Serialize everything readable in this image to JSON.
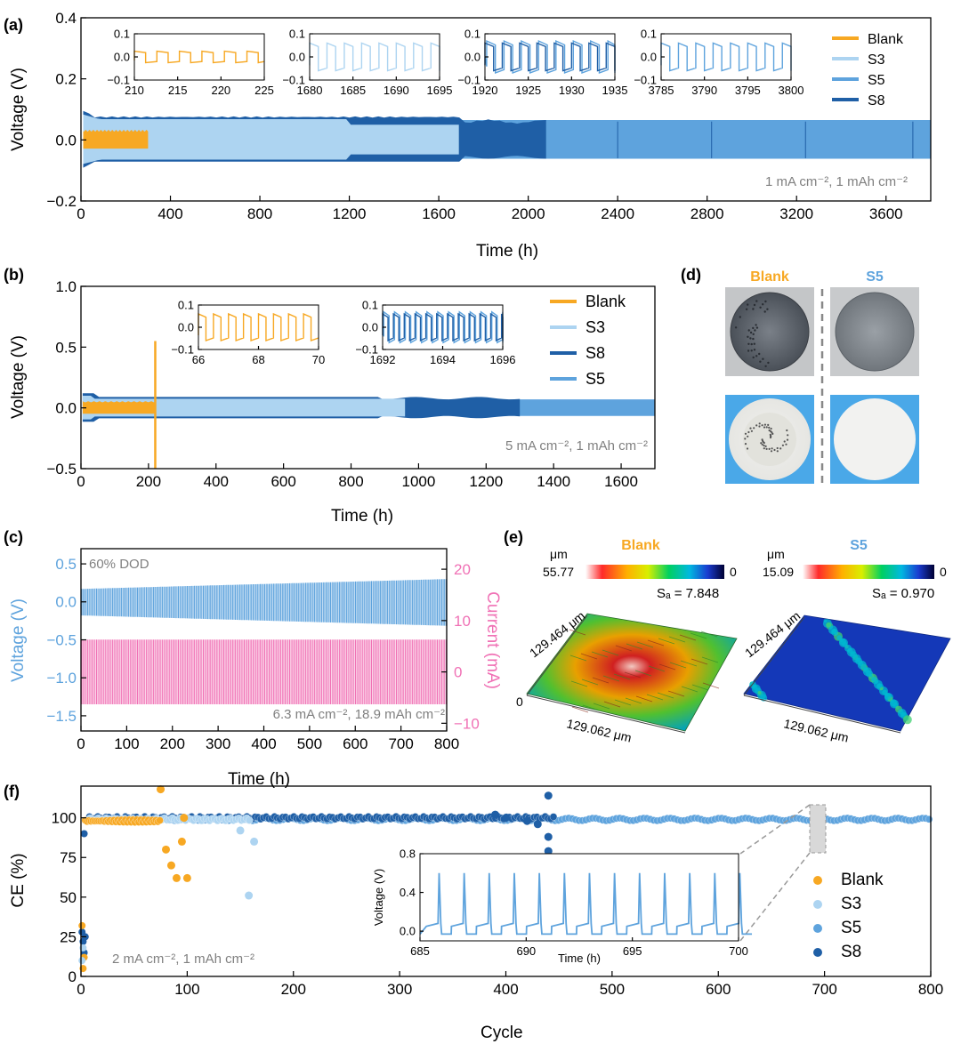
{
  "colors": {
    "blank": "#F7A823",
    "s3": "#ADD4F1",
    "s5": "#5EA3DD",
    "s8": "#1F5FA6",
    "current": "#F071B5",
    "annotation": "#808080"
  },
  "chart_data": [
    {
      "panel": "(a)",
      "type": "line",
      "xlabel": "Time (h)",
      "ylabel": "Voltage (V)",
      "xlim": [
        0,
        3800
      ],
      "ylim": [
        -0.2,
        0.4
      ],
      "xticks": [
        "0",
        "400",
        "800",
        "1200",
        "1600",
        "2000",
        "2400",
        "2800",
        "3200",
        "3600"
      ],
      "yticks": [
        "−0.2",
        "0.0",
        "0.2",
        "0.4"
      ],
      "annotation": "1 mA cm⁻², 1 mAh cm⁻²",
      "legend": [
        "Blank",
        "S3",
        "S5",
        "S8"
      ],
      "series": [
        {
          "name": "Blank",
          "t_end": 300,
          "amplitude": 0.03
        },
        {
          "name": "S3",
          "t_end": 1690,
          "amplitude": 0.07
        },
        {
          "name": "S8",
          "t_end": 2080,
          "amplitude": 0.06
        },
        {
          "name": "S5",
          "t_end": 3800,
          "amplitude": 0.065
        }
      ],
      "insets": [
        {
          "series": "Blank",
          "xlim": [
            210,
            225
          ],
          "xticks": [
            "210",
            "215",
            "220",
            "225"
          ],
          "yticks": [
            "0.1",
            "0.0",
            "−0.1"
          ]
        },
        {
          "series": "S3",
          "xlim": [
            1680,
            1695
          ],
          "xticks": [
            "1680",
            "1685",
            "1690",
            "1695"
          ],
          "yticks": [
            "0.1",
            "0.0",
            "−0.1"
          ]
        },
        {
          "series": "S8+S5",
          "xlim": [
            1920,
            1935
          ],
          "xticks": [
            "1920",
            "1925",
            "1930",
            "1935"
          ],
          "yticks": [
            "0.1",
            "0.0",
            "−0.1"
          ]
        },
        {
          "series": "S5",
          "xlim": [
            3785,
            3800
          ],
          "xticks": [
            "3785",
            "3790",
            "3795",
            "3800"
          ],
          "yticks": [
            "0.1",
            "0.0",
            "−0.1"
          ]
        }
      ]
    },
    {
      "panel": "(b)",
      "type": "line",
      "xlabel": "Time (h)",
      "ylabel": "Voltage (V)",
      "xlim": [
        0,
        1700
      ],
      "ylim": [
        -0.5,
        1.0
      ],
      "xticks": [
        "0",
        "200",
        "400",
        "600",
        "800",
        "1000",
        "1200",
        "1400",
        "1600"
      ],
      "yticks": [
        "−0.5",
        "0.0",
        "0.5",
        "1.0"
      ],
      "annotation": "5 mA cm⁻², 1 mAh cm⁻²",
      "legend": [
        "Blank",
        "S3",
        "S8",
        "S5"
      ],
      "series": [
        {
          "name": "Blank",
          "t_end": 220,
          "amplitude": 0.05,
          "spike": 0.55
        },
        {
          "name": "S3",
          "t_end": 960,
          "amplitude": 0.07
        },
        {
          "name": "S8",
          "t_end": 1300,
          "amplitude": 0.07
        },
        {
          "name": "S5",
          "t_end": 1700,
          "amplitude": 0.07
        }
      ],
      "insets": [
        {
          "series": "Blank",
          "xlim": [
            66,
            70
          ],
          "xticks": [
            "66",
            "68",
            "70"
          ],
          "yticks": [
            "0.1",
            "0.0",
            "−0.1"
          ]
        },
        {
          "series": "S5+S8",
          "xlim": [
            1692,
            1696
          ],
          "xticks": [
            "1692",
            "1694",
            "1696"
          ],
          "yticks": [
            "0.1",
            "0.0",
            "−0.1"
          ]
        }
      ]
    },
    {
      "panel": "(c)",
      "type": "line",
      "xlabel": "Time (h)",
      "ylabel": "Voltage (V)",
      "ylabel_right": "Current (mA)",
      "xlim": [
        0,
        800
      ],
      "ylim": [
        -1.7,
        0.7
      ],
      "ylim_right": [
        -11.5,
        24
      ],
      "xticks": [
        "0",
        "100",
        "200",
        "300",
        "400",
        "500",
        "600",
        "700",
        "800"
      ],
      "yticks": [
        "0.5",
        "0.0",
        "−0.5",
        "−1.0",
        "−1.5"
      ],
      "yticks_right": [
        "20",
        "10",
        "0",
        "−10"
      ],
      "annotation_top": "60% DOD",
      "annotation": "6.3 mA cm⁻², 18.9 mAh cm⁻²",
      "series": [
        {
          "name": "Voltage",
          "amplitude_start": 0.17,
          "amplitude_end": 0.3
        },
        {
          "name": "Current",
          "high": 6.3,
          "low": -6.3
        }
      ]
    },
    {
      "panel": "(f)",
      "type": "scatter",
      "xlabel": "Cycle",
      "ylabel": "CE (%)",
      "xlim": [
        0,
        800
      ],
      "ylim": [
        0,
        120
      ],
      "xticks": [
        "0",
        "100",
        "200",
        "300",
        "400",
        "500",
        "600",
        "700",
        "800"
      ],
      "yticks": [
        "0",
        "25",
        "50",
        "75",
        "100"
      ],
      "annotation": "2 mA cm⁻², 1 mAh cm⁻²",
      "legend": [
        "Blank",
        "S3",
        "S5",
        "S8"
      ],
      "series": [
        {
          "name": "Blank",
          "cycles": [
            1,
            100
          ],
          "ce_stable": 98,
          "outliers": [
            [
              75,
              118
            ],
            [
              80,
              80
            ],
            [
              85,
              70
            ],
            [
              90,
              62
            ],
            [
              95,
              85
            ],
            [
              97,
              100
            ],
            [
              100,
              62
            ]
          ]
        },
        {
          "name": "S3",
          "cycles": [
            1,
            165
          ],
          "ce_stable": 99,
          "outliers": [
            [
              150,
              92
            ],
            [
              158,
              51
            ],
            [
              163,
              85
            ]
          ]
        },
        {
          "name": "S8",
          "cycles": [
            1,
            445
          ],
          "ce_stable": 100,
          "outliers": [
            [
              440,
              114
            ],
            [
              440,
              88
            ],
            [
              440,
              79
            ]
          ]
        },
        {
          "name": "S5",
          "cycles": [
            1,
            800
          ],
          "ce_stable": 99
        }
      ],
      "inset": {
        "xlabel": "Time (h)",
        "ylabel": "Voltage (V)",
        "xlim": [
          685,
          700
        ],
        "ylim": [
          -0.1,
          0.8
        ],
        "xticks": [
          "685",
          "690",
          "695",
          "700"
        ],
        "yticks": [
          "0.8",
          "0.4",
          "0.0"
        ]
      }
    }
  ],
  "panel_labels": {
    "a": "(a)",
    "b": "(b)",
    "c": "(c)",
    "d": "(d)",
    "e": "(e)",
    "f": "(f)"
  },
  "panel_d": {
    "left_label": "Blank",
    "right_label": "S5"
  },
  "panel_e": {
    "left_title": "Blank",
    "right_title": "S5",
    "unit": "μm",
    "left_max": "55.77",
    "right_max": "15.09",
    "min": "0",
    "left_sa": "Sₐ = 7.848",
    "right_sa": "Sₐ = 0.970",
    "y_dim": "129.464 μm",
    "x_dim": "129.062 μm",
    "z_zero": "0"
  }
}
